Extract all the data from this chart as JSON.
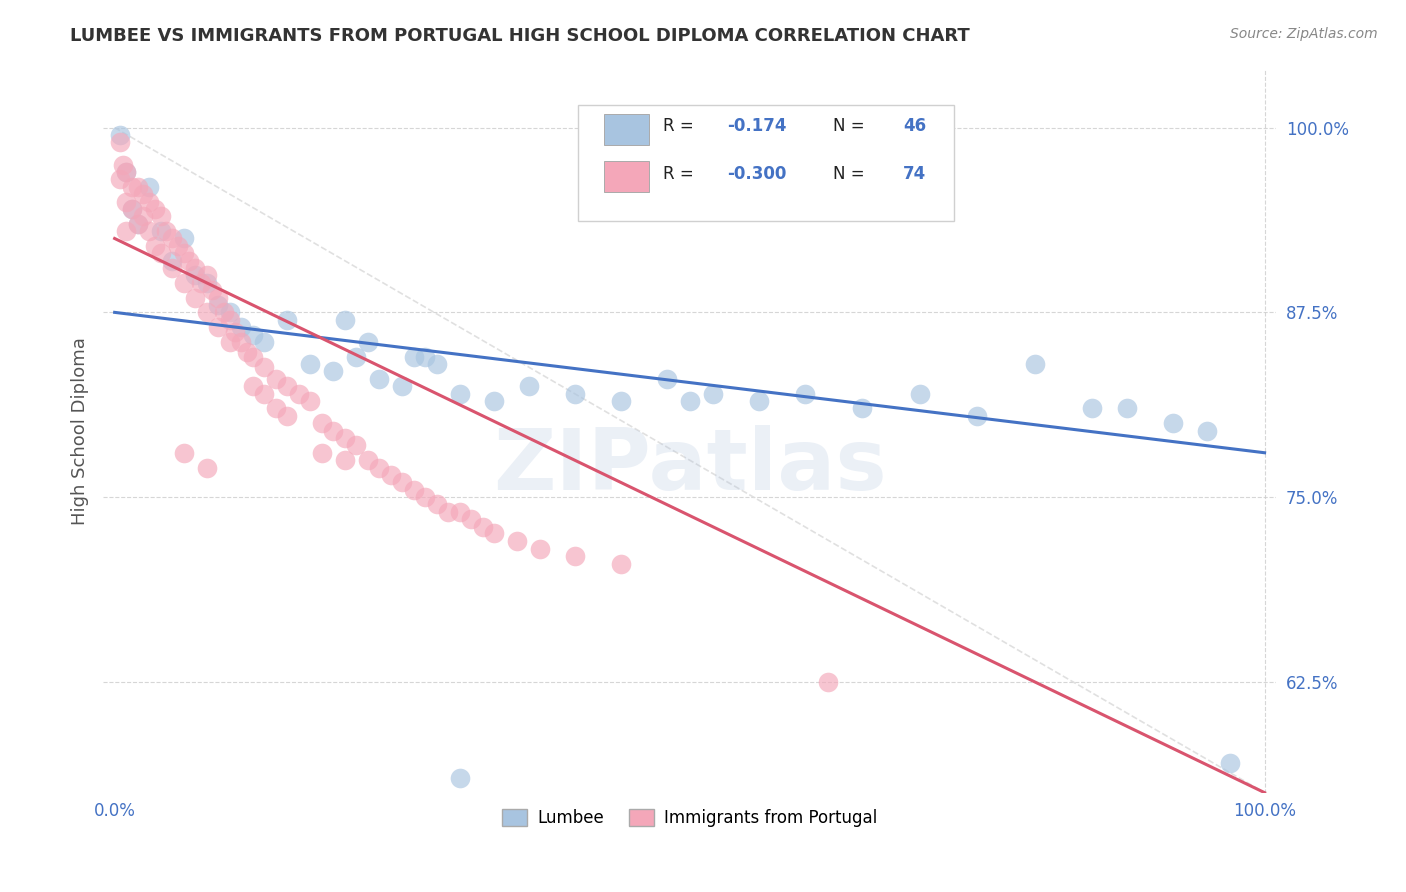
{
  "title": "LUMBEE VS IMMIGRANTS FROM PORTUGAL HIGH SCHOOL DIPLOMA CORRELATION CHART",
  "source": "Source: ZipAtlas.com",
  "ylabel": "High School Diploma",
  "xlim": [
    -0.01,
    1.01
  ],
  "ylim": [
    0.55,
    1.04
  ],
  "y_tick_labels": [
    "62.5%",
    "75.0%",
    "87.5%",
    "100.0%"
  ],
  "y_ticks": [
    0.625,
    0.75,
    0.875,
    1.0
  ],
  "lumbee_color": "#a8c4e0",
  "portugal_color": "#f4a7b9",
  "lumbee_line_color": "#4472c4",
  "portugal_line_color": "#d9546e",
  "R_lumbee": -0.174,
  "N_lumbee": 46,
  "R_portugal": -0.3,
  "N_portugal": 74,
  "lumbee_x": [
    0.005,
    0.01,
    0.015,
    0.02,
    0.03,
    0.04,
    0.05,
    0.06,
    0.07,
    0.08,
    0.09,
    0.1,
    0.11,
    0.12,
    0.13,
    0.15,
    0.17,
    0.19,
    0.21,
    0.23,
    0.25,
    0.27,
    0.3,
    0.33,
    0.36,
    0.4,
    0.44,
    0.48,
    0.52,
    0.56,
    0.6,
    0.65,
    0.7,
    0.75,
    0.8,
    0.85,
    0.88,
    0.92,
    0.95,
    0.97,
    0.2,
    0.22,
    0.26,
    0.28,
    0.5,
    0.3
  ],
  "lumbee_y": [
    0.995,
    0.97,
    0.945,
    0.935,
    0.96,
    0.93,
    0.91,
    0.925,
    0.9,
    0.895,
    0.88,
    0.875,
    0.865,
    0.86,
    0.855,
    0.87,
    0.84,
    0.835,
    0.845,
    0.83,
    0.825,
    0.845,
    0.82,
    0.815,
    0.825,
    0.82,
    0.815,
    0.83,
    0.82,
    0.815,
    0.82,
    0.81,
    0.82,
    0.805,
    0.84,
    0.81,
    0.81,
    0.8,
    0.795,
    0.57,
    0.87,
    0.855,
    0.845,
    0.84,
    0.815,
    0.56
  ],
  "portugal_x": [
    0.005,
    0.005,
    0.007,
    0.01,
    0.01,
    0.01,
    0.015,
    0.015,
    0.02,
    0.02,
    0.025,
    0.025,
    0.03,
    0.03,
    0.035,
    0.035,
    0.04,
    0.04,
    0.045,
    0.05,
    0.05,
    0.055,
    0.06,
    0.06,
    0.065,
    0.07,
    0.07,
    0.075,
    0.08,
    0.08,
    0.085,
    0.09,
    0.09,
    0.095,
    0.1,
    0.1,
    0.105,
    0.11,
    0.115,
    0.12,
    0.12,
    0.13,
    0.13,
    0.14,
    0.14,
    0.15,
    0.15,
    0.16,
    0.17,
    0.18,
    0.18,
    0.19,
    0.2,
    0.2,
    0.21,
    0.22,
    0.23,
    0.24,
    0.25,
    0.26,
    0.27,
    0.28,
    0.29,
    0.3,
    0.31,
    0.32,
    0.33,
    0.35,
    0.37,
    0.4,
    0.44,
    0.06,
    0.08,
    0.62
  ],
  "portugal_y": [
    0.99,
    0.965,
    0.975,
    0.97,
    0.95,
    0.93,
    0.96,
    0.945,
    0.96,
    0.935,
    0.955,
    0.94,
    0.95,
    0.93,
    0.945,
    0.92,
    0.94,
    0.915,
    0.93,
    0.925,
    0.905,
    0.92,
    0.915,
    0.895,
    0.91,
    0.905,
    0.885,
    0.895,
    0.9,
    0.875,
    0.89,
    0.885,
    0.865,
    0.875,
    0.87,
    0.855,
    0.862,
    0.855,
    0.848,
    0.845,
    0.825,
    0.838,
    0.82,
    0.83,
    0.81,
    0.825,
    0.805,
    0.82,
    0.815,
    0.8,
    0.78,
    0.795,
    0.79,
    0.775,
    0.785,
    0.775,
    0.77,
    0.765,
    0.76,
    0.755,
    0.75,
    0.745,
    0.74,
    0.74,
    0.735,
    0.73,
    0.726,
    0.72,
    0.715,
    0.71,
    0.705,
    0.78,
    0.77,
    0.625
  ],
  "watermark_text": "ZIPatlas",
  "background_color": "#ffffff",
  "grid_color": "#cccccc",
  "title_color": "#333333",
  "axis_label_color": "#555555",
  "tick_label_color": "#4472c4",
  "source_color": "#888888",
  "legend_label_1": "Lumbee",
  "legend_label_2": "Immigrants from Portugal"
}
